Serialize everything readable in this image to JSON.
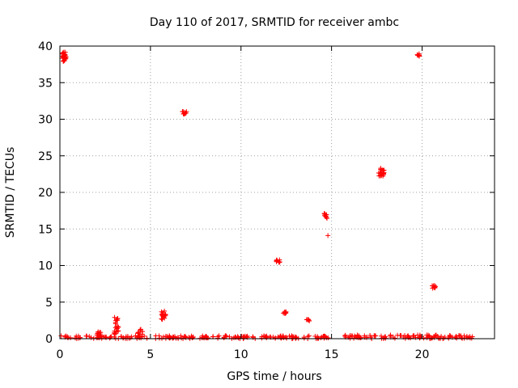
{
  "chart_data": {
    "type": "scatter",
    "title": "Day 110 of 2017, SRMTID for receiver ambc",
    "xlabel": "GPS time / hours",
    "ylabel": "SRMTID / TECUs",
    "xlim": [
      0,
      24
    ],
    "ylim": [
      0,
      40
    ],
    "grid": true,
    "marker": "+",
    "color": "#ff0000",
    "x_ticks": [
      {
        "value": 0,
        "label": "0"
      },
      {
        "value": 5,
        "label": "5"
      },
      {
        "value": 10,
        "label": "10"
      },
      {
        "value": 15,
        "label": "15"
      },
      {
        "value": 20,
        "label": "20"
      }
    ],
    "y_ticks": [
      {
        "value": 0,
        "label": "0"
      },
      {
        "value": 5,
        "label": "5"
      },
      {
        "value": 10,
        "label": "10"
      },
      {
        "value": 15,
        "label": "15"
      },
      {
        "value": 20,
        "label": "20"
      },
      {
        "value": 25,
        "label": "25"
      },
      {
        "value": 30,
        "label": "30"
      },
      {
        "value": 35,
        "label": "35"
      },
      {
        "value": 40,
        "label": "40"
      }
    ],
    "clusters": [
      {
        "x": [
          0.15,
          0.35
        ],
        "y": [
          37.9,
          39.3
        ],
        "n": 30
      },
      {
        "x": [
          6.75,
          7.0
        ],
        "y": [
          30.7,
          31.1
        ],
        "n": 10
      },
      {
        "x": [
          11.95,
          12.15
        ],
        "y": [
          10.4,
          10.8
        ],
        "n": 8
      },
      {
        "x": [
          12.3,
          12.5
        ],
        "y": [
          3.4,
          3.7
        ],
        "n": 8
      },
      {
        "x": [
          13.6,
          13.8
        ],
        "y": [
          2.4,
          2.7
        ],
        "n": 6
      },
      {
        "x": [
          14.6,
          14.75
        ],
        "y": [
          16.4,
          17.2
        ],
        "n": 10
      },
      {
        "x": [
          14.8,
          14.85
        ],
        "y": [
          14.1,
          14.2
        ],
        "n": 1
      },
      {
        "x": [
          17.6,
          17.9
        ],
        "y": [
          22.2,
          23.3
        ],
        "n": 20
      },
      {
        "x": [
          19.7,
          19.9
        ],
        "y": [
          38.6,
          39.0
        ],
        "n": 8
      },
      {
        "x": [
          20.55,
          20.75
        ],
        "y": [
          6.9,
          7.3
        ],
        "n": 8
      },
      {
        "x": [
          5.6,
          5.85
        ],
        "y": [
          2.6,
          3.8
        ],
        "n": 14
      },
      {
        "x": [
          3.0,
          3.25
        ],
        "y": [
          0.3,
          2.9
        ],
        "n": 22
      },
      {
        "x": [
          2.0,
          2.3
        ],
        "y": [
          0.1,
          1.1
        ],
        "n": 14
      },
      {
        "x": [
          4.3,
          4.6
        ],
        "y": [
          0.1,
          1.3
        ],
        "n": 12
      }
    ],
    "baseline": [
      {
        "x": [
          0.0,
          15.0
        ],
        "y": [
          0.0,
          0.4
        ],
        "n": 200
      },
      {
        "x": [
          15.7,
          22.8
        ],
        "y": [
          0.0,
          0.5
        ],
        "n": 110
      }
    ]
  }
}
